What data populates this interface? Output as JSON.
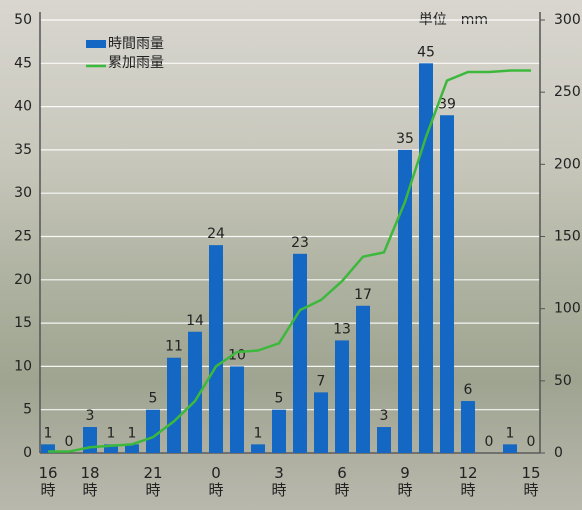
{
  "chart_data": {
    "type": "bar_line",
    "unit_label": "単位　mm",
    "categories": [
      "16\n時",
      null,
      "18\n時",
      null,
      null,
      "21\n時",
      null,
      null,
      "0\n時",
      null,
      null,
      "3\n時",
      null,
      null,
      "6\n時",
      null,
      null,
      "9\n時",
      null,
      null,
      "12\n時",
      null,
      null,
      "15\n時"
    ],
    "series": [
      {
        "name": "時間雨量",
        "type": "bar",
        "color": "#1467c2",
        "values": [
          1,
          0,
          3,
          1,
          1,
          5,
          11,
          14,
          24,
          10,
          1,
          5,
          23,
          7,
          13,
          17,
          3,
          35,
          45,
          39,
          6,
          0,
          1,
          0
        ]
      },
      {
        "name": "累加雨量",
        "type": "line",
        "axis": "y2",
        "color": "#3cb93c",
        "values": [
          1,
          1,
          4,
          5,
          6,
          11,
          22,
          36,
          60,
          70,
          71,
          76,
          99,
          106,
          119,
          136,
          139,
          174,
          219,
          258,
          264,
          264,
          265,
          265
        ]
      }
    ],
    "ylim": [
      0,
      50
    ],
    "yticks": [
      0,
      5,
      10,
      15,
      20,
      25,
      30,
      35,
      40,
      45,
      50
    ],
    "y2lim": [
      0,
      300
    ],
    "y2ticks": [
      0,
      50,
      100,
      150,
      200,
      250,
      300
    ],
    "grid": true,
    "legend": "upper-left"
  }
}
